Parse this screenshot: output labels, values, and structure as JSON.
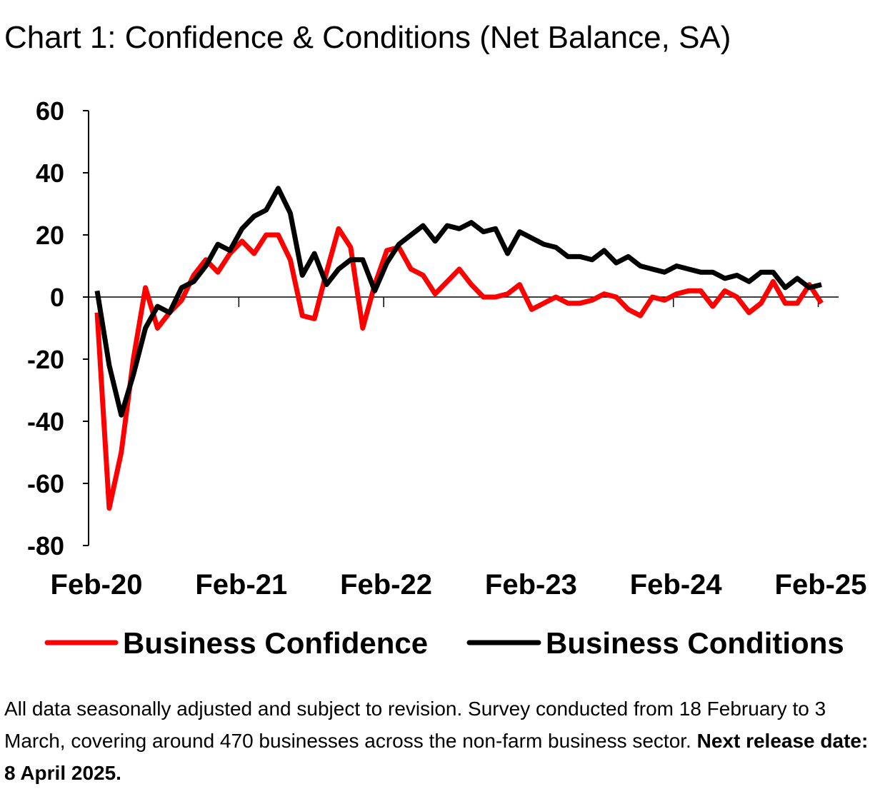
{
  "title": "Chart 1: Confidence & Conditions (Net Balance, SA)",
  "footnote": {
    "text": "All data seasonally adjusted and subject to revision. Survey conducted from 18 February to 3 March, covering around 470 businesses across the non-farm business sector. ",
    "bold": "Next release date: 8 April 2025."
  },
  "chart_data": {
    "type": "line",
    "title": "Chart 1: Confidence & Conditions (Net Balance, SA)",
    "xlabel": "",
    "ylabel": "",
    "ylim": [
      -80,
      60
    ],
    "yticks": [
      "60",
      "40",
      "20",
      "0",
      "-20",
      "-40",
      "-60",
      "-80"
    ],
    "xtick_labels": [
      "Feb-20",
      "Feb-21",
      "Feb-22",
      "Feb-23",
      "Feb-24",
      "Feb-25"
    ],
    "x_start": "Feb-20",
    "x_end": "Feb-25",
    "grid": false,
    "legend_position": "bottom",
    "series": [
      {
        "name": "Business Confidence",
        "color": "#ff0000",
        "values": [
          -5,
          -68,
          -50,
          -20,
          3,
          -10,
          -5,
          -1,
          7,
          12,
          8,
          14,
          18,
          14,
          20,
          20,
          12,
          -6,
          -7,
          8,
          22,
          16,
          -10,
          4,
          15,
          16,
          9,
          7,
          1,
          5,
          9,
          4,
          0,
          0,
          1,
          4,
          -4,
          -2,
          0,
          -2,
          -2,
          -1,
          1,
          0,
          -4,
          -6,
          0,
          -1,
          1,
          2,
          2,
          -3,
          2,
          0,
          -5,
          -2,
          5,
          -2,
          -2,
          4,
          -2
        ]
      },
      {
        "name": "Business Conditions",
        "color": "#000000",
        "values": [
          2,
          -22,
          -38,
          -25,
          -10,
          -3,
          -5,
          3,
          5,
          10,
          17,
          15,
          22,
          26,
          28,
          35,
          27,
          7,
          14,
          4,
          9,
          12,
          12,
          2,
          11,
          17,
          20,
          23,
          18,
          23,
          22,
          24,
          21,
          22,
          14,
          21,
          19,
          17,
          16,
          13,
          13,
          12,
          15,
          11,
          13,
          10,
          9,
          8,
          10,
          9,
          8,
          8,
          6,
          7,
          5,
          8,
          8,
          3,
          6,
          3,
          4
        ]
      }
    ]
  }
}
